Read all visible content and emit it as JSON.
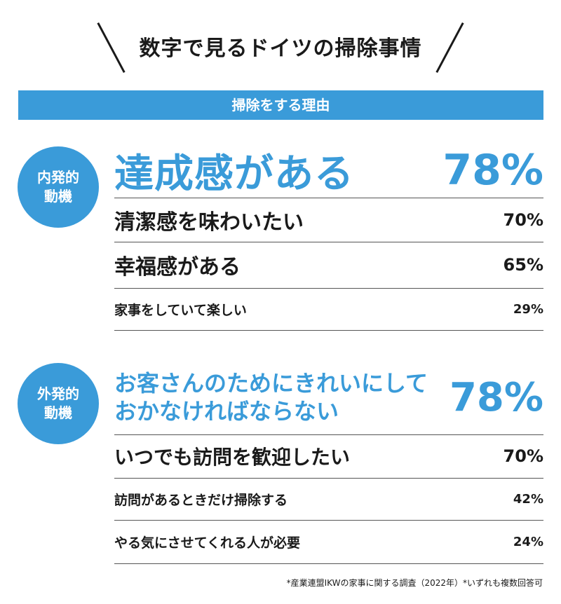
{
  "title": "数字で見るドイツの掃除事情",
  "banner": "掃除をする理由",
  "colors": {
    "accent": "#3a9bd9",
    "text": "#1a1a1a"
  },
  "groups": [
    {
      "label": "内発的\n動機"
    },
    {
      "label": "外発的\n動機"
    }
  ],
  "chart_data": {
    "type": "table",
    "title": "掃除をする理由",
    "groups": [
      {
        "name": "内発的動機",
        "rows": [
          {
            "label": "達成感がある",
            "value": "78%"
          },
          {
            "label": "清潔感を味わいたい",
            "value": "70%"
          },
          {
            "label": "幸福感がある",
            "value": "65%"
          },
          {
            "label": "家事をしていて楽しい",
            "value": "29%"
          }
        ]
      },
      {
        "name": "外発的動機",
        "rows": [
          {
            "label": "お客さんのためにきれいにして\nおかなければならない",
            "value": "78%"
          },
          {
            "label": "いつでも訪問を歓迎したい",
            "value": "70%"
          },
          {
            "label": "訪問があるときだけ掃除する",
            "value": "42%"
          },
          {
            "label": "やる気にさせてくれる人が必要",
            "value": "24%"
          }
        ]
      }
    ]
  },
  "footnote": "*産業連盟IKWの家事に関する調査（2022年）*いずれも複数回答可"
}
